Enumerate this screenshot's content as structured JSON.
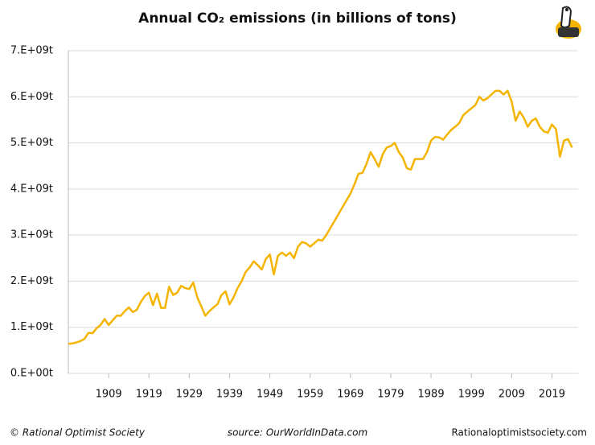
{
  "chart_data": {
    "type": "line",
    "title": "Annual CO₂ emissions (in billions of tons)",
    "credit": "© Rational Optimist Society",
    "source": "source: OurWorldInData.com",
    "website": "Rationaloptimistsociety.com",
    "x": [
      1899,
      1900,
      1901,
      1902,
      1903,
      1904,
      1905,
      1906,
      1907,
      1908,
      1909,
      1910,
      1911,
      1912,
      1913,
      1914,
      1915,
      1916,
      1917,
      1918,
      1919,
      1920,
      1921,
      1922,
      1923,
      1924,
      1925,
      1926,
      1927,
      1928,
      1929,
      1930,
      1931,
      1932,
      1933,
      1934,
      1935,
      1936,
      1937,
      1938,
      1939,
      1940,
      1941,
      1942,
      1943,
      1944,
      1945,
      1946,
      1947,
      1948,
      1949,
      1950,
      1951,
      1952,
      1953,
      1954,
      1955,
      1956,
      1957,
      1958,
      1959,
      1960,
      1961,
      1962,
      1963,
      1964,
      1965,
      1966,
      1967,
      1968,
      1969,
      1970,
      1971,
      1972,
      1973,
      1974,
      1975,
      1976,
      1977,
      1978,
      1979,
      1980,
      1981,
      1982,
      1983,
      1984,
      1985,
      1986,
      1987,
      1988,
      1989,
      1990,
      1991,
      1992,
      1993,
      1994,
      1995,
      1996,
      1997,
      1998,
      1999,
      2000,
      2001,
      2002,
      2003,
      2004,
      2005,
      2006,
      2007,
      2008,
      2009,
      2010,
      2011,
      2012,
      2013,
      2014,
      2015,
      2016,
      2017,
      2018,
      2019,
      2020,
      2021,
      2022,
      2023,
      2024
    ],
    "series": [
      {
        "color": "#f5b400",
        "values": [
          640000000,
          650000000,
          670000000,
          700000000,
          750000000,
          880000000,
          870000000,
          980000000,
          1050000000,
          1180000000,
          1050000000,
          1150000000,
          1250000000,
          1250000000,
          1350000000,
          1430000000,
          1330000000,
          1380000000,
          1550000000,
          1680000000,
          1750000000,
          1480000000,
          1730000000,
          1420000000,
          1420000000,
          1880000000,
          1700000000,
          1750000000,
          1900000000,
          1850000000,
          1830000000,
          1970000000,
          1650000000,
          1450000000,
          1250000000,
          1350000000,
          1430000000,
          1500000000,
          1700000000,
          1780000000,
          1500000000,
          1650000000,
          1850000000,
          2000000000,
          2200000000,
          2300000000,
          2430000000,
          2350000000,
          2250000000,
          2480000000,
          2580000000,
          2150000000,
          2550000000,
          2620000000,
          2550000000,
          2620000000,
          2500000000,
          2750000000,
          2850000000,
          2820000000,
          2750000000,
          2820000000,
          2900000000,
          2880000000,
          3000000000,
          3150000000,
          3300000000,
          3450000000,
          3600000000,
          3750000000,
          3900000000,
          4100000000,
          4330000000,
          4350000000,
          4550000000,
          4800000000,
          4650000000,
          4480000000,
          4750000000,
          4900000000,
          4930000000,
          5000000000,
          4800000000,
          4680000000,
          4450000000,
          4420000000,
          4650000000,
          4650000000,
          4650000000,
          4800000000,
          5050000000,
          5130000000,
          5120000000,
          5070000000,
          5180000000,
          5280000000,
          5350000000,
          5430000000,
          5600000000,
          5680000000,
          5750000000,
          5820000000,
          6000000000,
          5920000000,
          5970000000,
          6050000000,
          6130000000,
          6130000000,
          6050000000,
          6130000000,
          5900000000,
          5480000000,
          5680000000,
          5550000000,
          5350000000,
          5480000000,
          5530000000,
          5350000000,
          5250000000,
          5220000000,
          5400000000,
          5300000000,
          4700000000,
          5050000000,
          5080000000,
          4900000000
        ]
      }
    ],
    "xlim": [
      1899,
      2025.5
    ],
    "xticks": [
      1909,
      1919,
      1929,
      1939,
      1949,
      1959,
      1969,
      1979,
      1989,
      1999,
      2009,
      2019
    ],
    "ylim": [
      0,
      7000000000
    ],
    "yticks": [
      {
        "value": 0,
        "label": "0.E+00t"
      },
      {
        "value": 1000000000,
        "label": "1.E+09t"
      },
      {
        "value": 2000000000,
        "label": "2.E+09t"
      },
      {
        "value": 3000000000,
        "label": "3.E+09t"
      },
      {
        "value": 4000000000,
        "label": "4.E+09t"
      },
      {
        "value": 5000000000,
        "label": "5.E+09t"
      },
      {
        "value": 6000000000,
        "label": "6.E+09t"
      },
      {
        "value": 7000000000,
        "label": "7.E+09t"
      }
    ],
    "grid": true
  }
}
